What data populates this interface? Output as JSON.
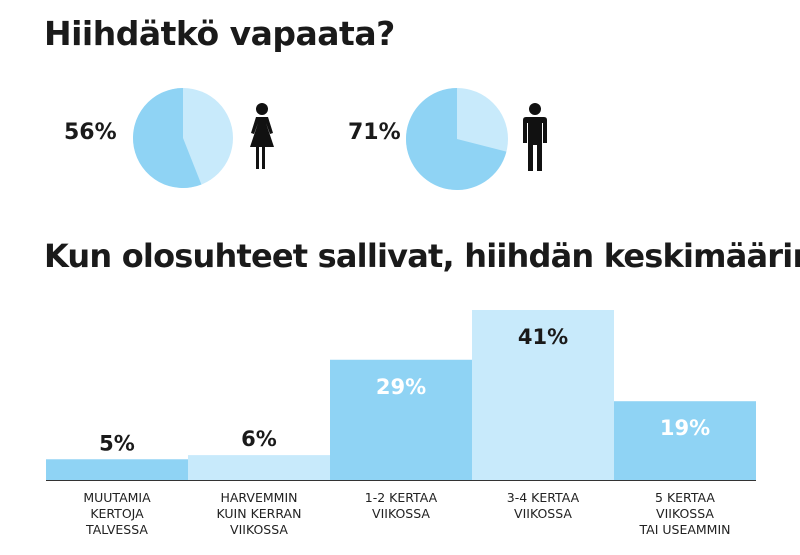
{
  "titles": {
    "section1": "Hiihdätkö vapaata?",
    "section2": "Kun olosuhteet sallivat, hiihdän keskimäärin"
  },
  "pies": [
    {
      "label": "56%",
      "value": 56,
      "gender_icon": "female-icon"
    },
    {
      "label": "71%",
      "value": 71,
      "gender_icon": "male-icon"
    }
  ],
  "colors": {
    "dark_blue": "#8fd3f4",
    "light_blue": "#c8eafb",
    "text": "#1a1a1a",
    "value_on_bar": "#ffffff"
  },
  "chart_data": {
    "type": "bar",
    "categories": [
      [
        "MUUTAMIA",
        "KERTOJA",
        "TALVESSA"
      ],
      [
        "HARVEMMIN",
        "KUIN KERRAN",
        "VIIKOSSA"
      ],
      [
        "1-2 KERTAA",
        "VIIKOSSA"
      ],
      [
        "3-4 KERTAA",
        "VIIKOSSA"
      ],
      [
        "5 KERTAA",
        "VIIKOSSA",
        "TAI USEAMMIN"
      ]
    ],
    "values": [
      5,
      6,
      29,
      41,
      19
    ],
    "value_labels": [
      "5%",
      "6%",
      "29%",
      "41%",
      "19%"
    ],
    "grid": false,
    "legend": "none"
  }
}
